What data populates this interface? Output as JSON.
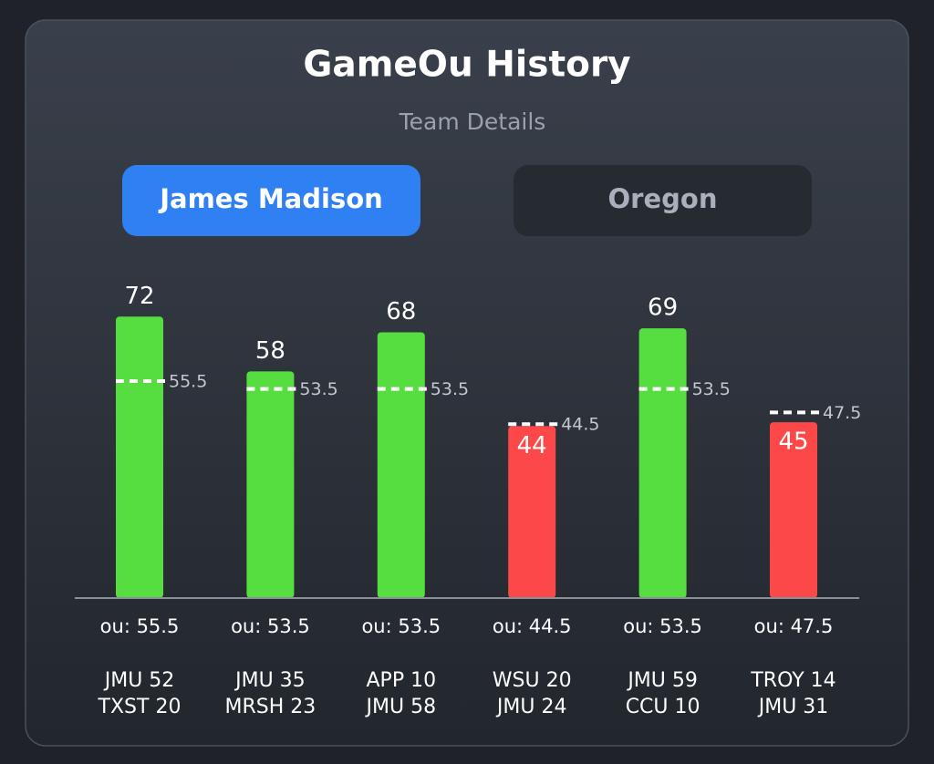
{
  "header": {
    "title": "GameOu History",
    "subtitle": "Team Details"
  },
  "tabs": [
    {
      "label": "James Madison",
      "active": true
    },
    {
      "label": "Oregon",
      "active": false
    }
  ],
  "chart_data": {
    "type": "bar",
    "categories": [
      [
        "JMU 52",
        "TXST 20"
      ],
      [
        "JMU 35",
        "MRSH 23"
      ],
      [
        "APP 10",
        "JMU 58"
      ],
      [
        "WSU 20",
        "JMU 24"
      ],
      [
        "JMU 59",
        "CCU 10"
      ],
      [
        "TROY 14",
        "JMU 31"
      ]
    ],
    "values": [
      72,
      58,
      68,
      44,
      69,
      45
    ],
    "colors": [
      "#56dd3f",
      "#56dd3f",
      "#56dd3f",
      "#fc4848",
      "#56dd3f",
      "#fc4848"
    ],
    "ou": [
      55.5,
      53.5,
      53.5,
      44.5,
      53.5,
      47.5
    ],
    "ou_labels": [
      "ou: 55.5",
      "ou: 53.5",
      "ou: 53.5",
      "ou: 44.5",
      "ou: 53.5",
      "ou: 47.5"
    ],
    "ylim": [
      0,
      80
    ]
  }
}
